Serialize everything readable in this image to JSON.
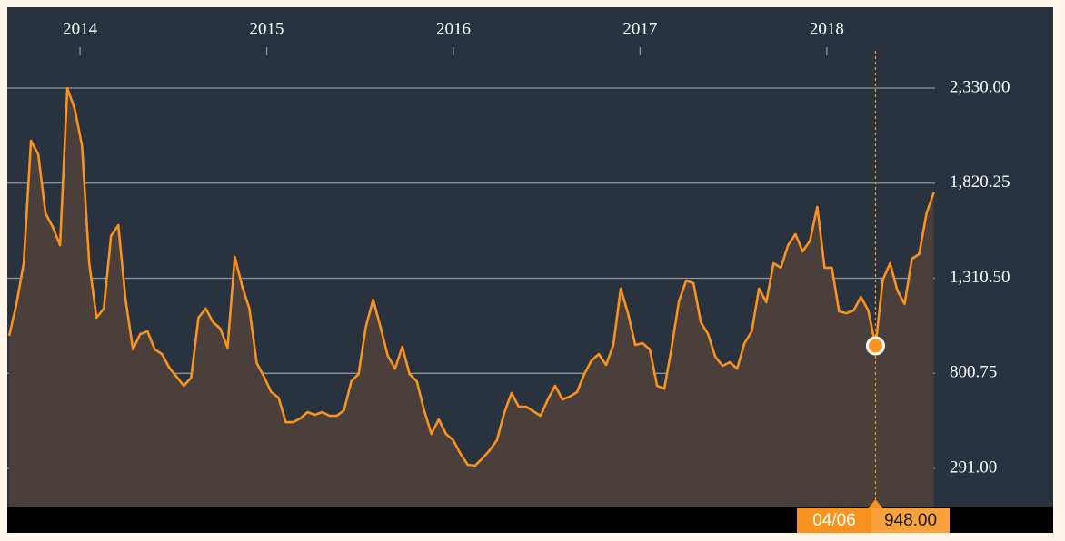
{
  "chart_data": {
    "type": "area-line",
    "x": [
      2013.62,
      2013.659,
      2013.698,
      2013.737,
      2013.776,
      2013.815,
      2013.854,
      2013.893,
      2013.932,
      2013.971,
      2014.01,
      2014.049,
      2014.088,
      2014.127,
      2014.166,
      2014.205,
      2014.244,
      2014.283,
      2014.322,
      2014.361,
      2014.4,
      2014.439,
      2014.478,
      2014.517,
      2014.556,
      2014.595,
      2014.634,
      2014.673,
      2014.712,
      2014.751,
      2014.79,
      2014.829,
      2014.868,
      2014.907,
      2014.946,
      2014.985,
      2015.024,
      2015.063,
      2015.102,
      2015.141,
      2015.18,
      2015.219,
      2015.258,
      2015.297,
      2015.336,
      2015.375,
      2015.414,
      2015.453,
      2015.492,
      2015.531,
      2015.57,
      2015.609,
      2015.648,
      2015.687,
      2015.726,
      2015.765,
      2015.804,
      2015.843,
      2015.882,
      2015.921,
      2015.96,
      2015.999,
      2016.038,
      2016.077,
      2016.116,
      2016.155,
      2016.194,
      2016.233,
      2016.272,
      2016.311,
      2016.35,
      2016.389,
      2016.428,
      2016.467,
      2016.506,
      2016.545,
      2016.584,
      2016.623,
      2016.662,
      2016.701,
      2016.74,
      2016.779,
      2016.818,
      2016.857,
      2016.896,
      2016.935,
      2016.974,
      2017.013,
      2017.052,
      2017.091,
      2017.13,
      2017.169,
      2017.208,
      2017.247,
      2017.286,
      2017.325,
      2017.364,
      2017.403,
      2017.442,
      2017.481,
      2017.52,
      2017.559,
      2017.598,
      2017.637,
      2017.676,
      2017.715,
      2017.754,
      2017.793,
      2017.832,
      2017.871,
      2017.91,
      2017.949,
      2017.988,
      2018.027,
      2018.066,
      2018.105,
      2018.144,
      2018.183,
      2018.222,
      2018.261,
      2018.3,
      2018.339,
      2018.378,
      2018.417,
      2018.456,
      2018.495,
      2018.534,
      2018.573
    ],
    "series": [
      {
        "color": "#f7931e",
        "fill": "#4a3f3b",
        "values": [
          1002,
          1172,
          1391,
          2048,
          1975,
          1658,
          1585,
          1488,
          2330,
          2218,
          2023,
          1391,
          1099,
          1148,
          1537,
          1595,
          1196,
          929,
          1011,
          1026,
          929,
          904,
          831,
          783,
          734,
          778,
          1099,
          1148,
          1075,
          1041,
          938,
          1425,
          1269,
          1148,
          856,
          783,
          700,
          671,
          539,
          539,
          559,
          593,
          578,
          593,
          573,
          573,
          603,
          758,
          797,
          1050,
          1196,
          1050,
          895,
          826,
          943,
          797,
          758,
          603,
          476,
          554,
          476,
          442,
          369,
          311,
          306,
          345,
          388,
          442,
          588,
          695,
          622,
          622,
          598,
          573,
          661,
          734,
          661,
          676,
          700,
          797,
          870,
          904,
          846,
          953,
          1255,
          1123,
          953,
          963,
          929,
          734,
          719,
          938,
          1186,
          1298,
          1284,
          1075,
          1011,
          890,
          841,
          860,
          826,
          963,
          1026,
          1255,
          1182,
          1391,
          1367,
          1488,
          1547,
          1454,
          1512,
          1693,
          1367,
          1367,
          1133,
          1123,
          1138,
          1211,
          1138,
          948,
          1303,
          1391,
          1245,
          1172,
          1415,
          1440,
          1658,
          1770
        ]
      }
    ],
    "xlim": [
      2013.61,
      2018.58
    ],
    "xticks": [
      2014,
      2015,
      2016,
      2017,
      2018
    ],
    "ylim": [
      87,
      2763
    ],
    "yticks": [
      {
        "value": 291,
        "label": "291.00"
      },
      {
        "value": 800.75,
        "label": "800.75"
      },
      {
        "value": 1310.5,
        "label": "1,310.50"
      },
      {
        "value": 1820.25,
        "label": "1,820.25"
      },
      {
        "value": 2330,
        "label": "2,330.00"
      }
    ],
    "grid": true,
    "crosshair": {
      "x": 2018.261,
      "label": "04/06",
      "value": 948,
      "value_label": "948.00"
    }
  }
}
